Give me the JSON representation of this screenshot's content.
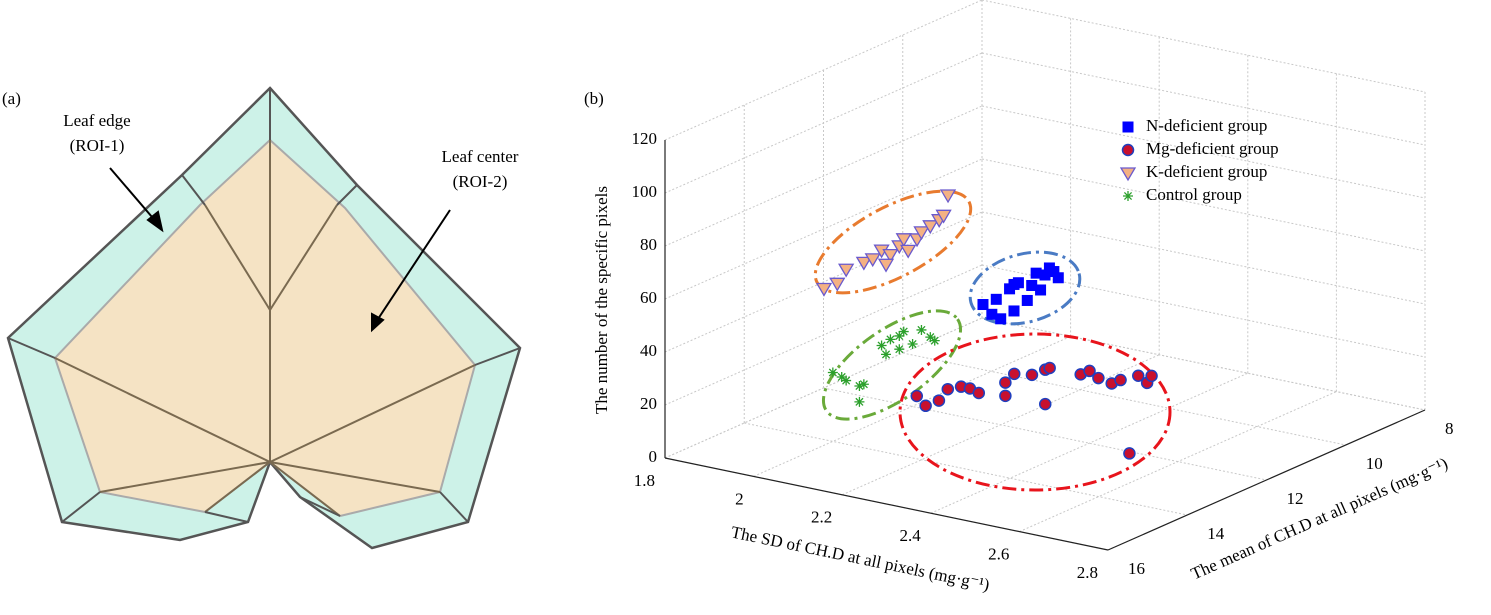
{
  "panel_a": {
    "label": "(a)",
    "edge_label": [
      "Leaf edge",
      "(ROI-1)"
    ],
    "center_label": [
      "Leaf center",
      "(ROI-2)"
    ]
  },
  "chart_data": {
    "type": "scatter3d",
    "panel_label": "(b)",
    "xlabel": "The SD of CH.D at all pixels (mg·g⁻¹)",
    "ylabel": "The mean of CH.D at all pixels (mg·g⁻¹)",
    "zlabel": "The number of the specific pixels",
    "xlim": [
      1.8,
      2.8
    ],
    "xticks": [
      1.8,
      2,
      2.2,
      2.4,
      2.6,
      2.8
    ],
    "ylim": [
      16,
      8
    ],
    "yticks": [
      8,
      10,
      12,
      14,
      16
    ],
    "zlim": [
      0,
      120
    ],
    "zticks": [
      0,
      20,
      40,
      60,
      80,
      100,
      120
    ],
    "grid": true,
    "legend": "upper right",
    "series": [
      {
        "name": "N-deficient group",
        "marker": "square",
        "color": "#0000ff",
        "edge": "#0000ff",
        "x": [
          2.16,
          2.19,
          2.18,
          2.2,
          2.22,
          2.23,
          2.24,
          2.27,
          2.28,
          2.3,
          2.31,
          2.32,
          2.33,
          2.29,
          2.26,
          2.23
        ],
        "y": [
          12,
          12,
          12,
          12,
          12,
          12,
          12,
          12,
          12,
          12,
          12,
          12,
          12,
          12,
          12,
          12
        ],
        "z": [
          44,
          47,
          41,
          40,
          52,
          54,
          55,
          55,
          60,
          60,
          63,
          62,
          60,
          54,
          49,
          44
        ]
      },
      {
        "name": "Mg-deficient group",
        "marker": "circle",
        "color": "#c8102e",
        "edge": "#1f3fbf",
        "x": [
          2.1,
          2.12,
          2.15,
          2.17,
          2.2,
          2.22,
          2.24,
          2.3,
          2.3,
          2.32,
          2.36,
          2.39,
          2.4,
          2.39,
          2.47,
          2.49,
          2.51,
          2.54,
          2.56,
          2.6,
          2.62,
          2.63,
          2.58
        ],
        "y": [
          13,
          13,
          13,
          13,
          13,
          13,
          13,
          13,
          13,
          13,
          13,
          13,
          13,
          13,
          13,
          13,
          13,
          13,
          13,
          13,
          13,
          13,
          13
        ],
        "z": [
          14,
          11,
          14,
          19,
          21,
          21,
          20,
          21,
          26,
          30,
          31,
          34,
          35,
          21,
          35,
          37,
          35,
          34,
          36,
          39,
          37,
          40,
          9
        ]
      },
      {
        "name": "K-deficient group",
        "marker": "triangle-down",
        "color": "#f4b183",
        "edge": "#6a5acd",
        "x": [
          1.98,
          2.01,
          2.03,
          2.07,
          2.09,
          2.11,
          2.13,
          2.15,
          2.16,
          2.19,
          2.2,
          2.22,
          2.24,
          2.25,
          2.26,
          2.17,
          2.12
        ],
        "y": [
          14,
          14,
          14,
          14,
          14,
          14,
          14,
          14,
          14,
          14,
          14,
          14,
          14,
          14,
          14,
          14,
          14
        ],
        "z": [
          57,
          60,
          66,
          70,
          72,
          76,
          75,
          79,
          82,
          83,
          86,
          89,
          92,
          94,
          102,
          78,
          71
        ]
      },
      {
        "name": "Control group",
        "marker": "star",
        "color": "#2ca02c",
        "edge": "#2ca02c",
        "x": [
          2.0,
          2.02,
          2.03,
          2.06,
          2.07,
          2.06,
          2.11,
          2.13,
          2.15,
          2.16,
          2.18,
          2.2,
          2.22,
          2.23,
          2.12,
          2.15
        ],
        "y": [
          14,
          14,
          14,
          14,
          14,
          14,
          14,
          14,
          14,
          14,
          14,
          14,
          14,
          14,
          14,
          14
        ],
        "z": [
          26,
          25,
          24,
          23,
          24,
          17,
          40,
          43,
          45,
          47,
          43,
          49,
          47,
          46,
          37,
          40
        ]
      }
    ]
  }
}
